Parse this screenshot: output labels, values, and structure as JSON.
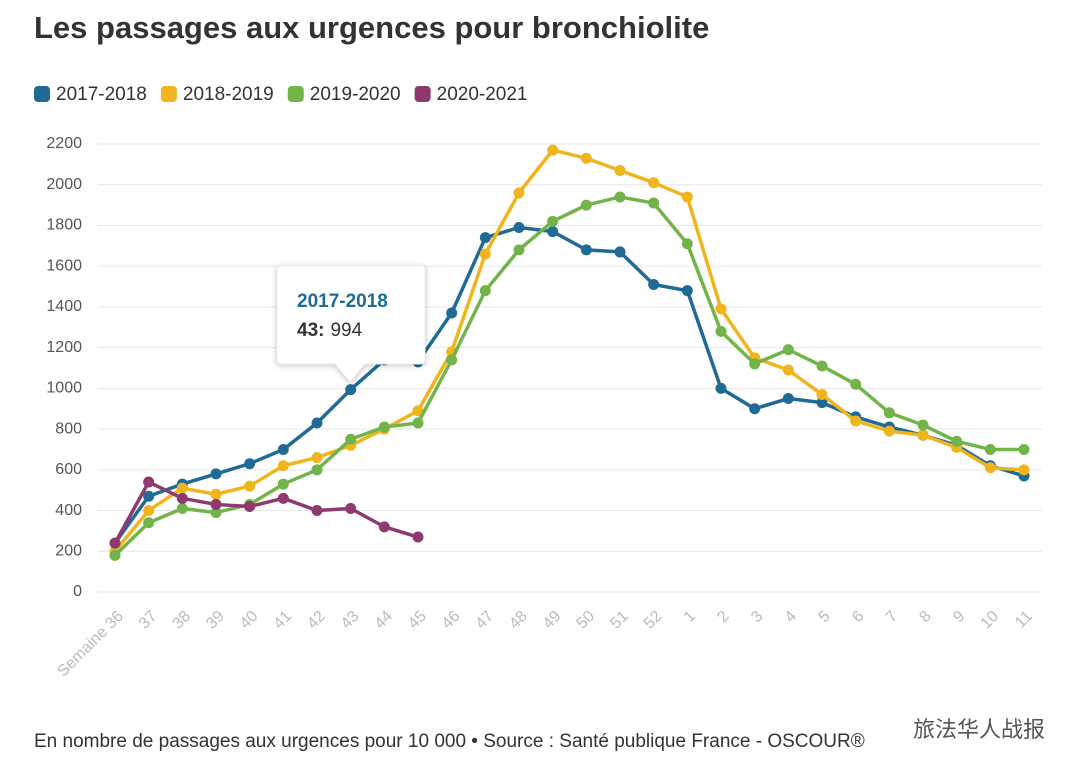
{
  "chart_data": {
    "type": "line",
    "title": "Les passages aux urgences pour bronchiolite",
    "categories": [
      "Semaine 36",
      "37",
      "38",
      "39",
      "40",
      "41",
      "42",
      "43",
      "44",
      "45",
      "46",
      "47",
      "48",
      "49",
      "50",
      "51",
      "52",
      "1",
      "2",
      "3",
      "4",
      "5",
      "6",
      "7",
      "8",
      "9",
      "10",
      "11"
    ],
    "series": [
      {
        "name": "2017-2018",
        "color": "#1f6b96",
        "values": [
          240,
          470,
          530,
          580,
          630,
          700,
          830,
          994,
          1140,
          1130,
          1370,
          1740,
          1790,
          1770,
          1680,
          1670,
          1510,
          1480,
          1000,
          900,
          950,
          930,
          860,
          810,
          770,
          720,
          620,
          570
        ]
      },
      {
        "name": "2018-2019",
        "color": "#f0b41c",
        "values": [
          200,
          400,
          510,
          480,
          520,
          620,
          660,
          720,
          800,
          890,
          1180,
          1660,
          1960,
          2170,
          2130,
          2070,
          2010,
          1940,
          1390,
          1150,
          1090,
          970,
          840,
          790,
          770,
          710,
          610,
          600
        ]
      },
      {
        "name": "2019-2020",
        "color": "#73b44a",
        "values": [
          180,
          340,
          410,
          390,
          430,
          530,
          600,
          750,
          810,
          830,
          1140,
          1480,
          1680,
          1820,
          1900,
          1940,
          1910,
          1710,
          1280,
          1120,
          1190,
          1110,
          1020,
          880,
          820,
          740,
          700,
          700
        ]
      },
      {
        "name": "2020-2021",
        "color": "#8e3a6e",
        "values": [
          240,
          540,
          460,
          430,
          420,
          460,
          400,
          410,
          320,
          270,
          null,
          null,
          null,
          null,
          null,
          null,
          null,
          null,
          null,
          null,
          null,
          null,
          null,
          null,
          null,
          null,
          null,
          null
        ]
      }
    ],
    "ylim": [
      0,
      2200
    ],
    "yticks": [
      0,
      200,
      400,
      600,
      800,
      1000,
      1200,
      1400,
      1600,
      1800,
      2000,
      2200
    ],
    "grid": true,
    "legend": "top",
    "tooltip": {
      "title": "2017-2018",
      "label": "43:",
      "value": 994
    },
    "footnote": "En nombre de passages aux urgences pour 10 000 • Source : Santé publique France - OSCOUR®",
    "watermark": "旅法华人战报"
  }
}
